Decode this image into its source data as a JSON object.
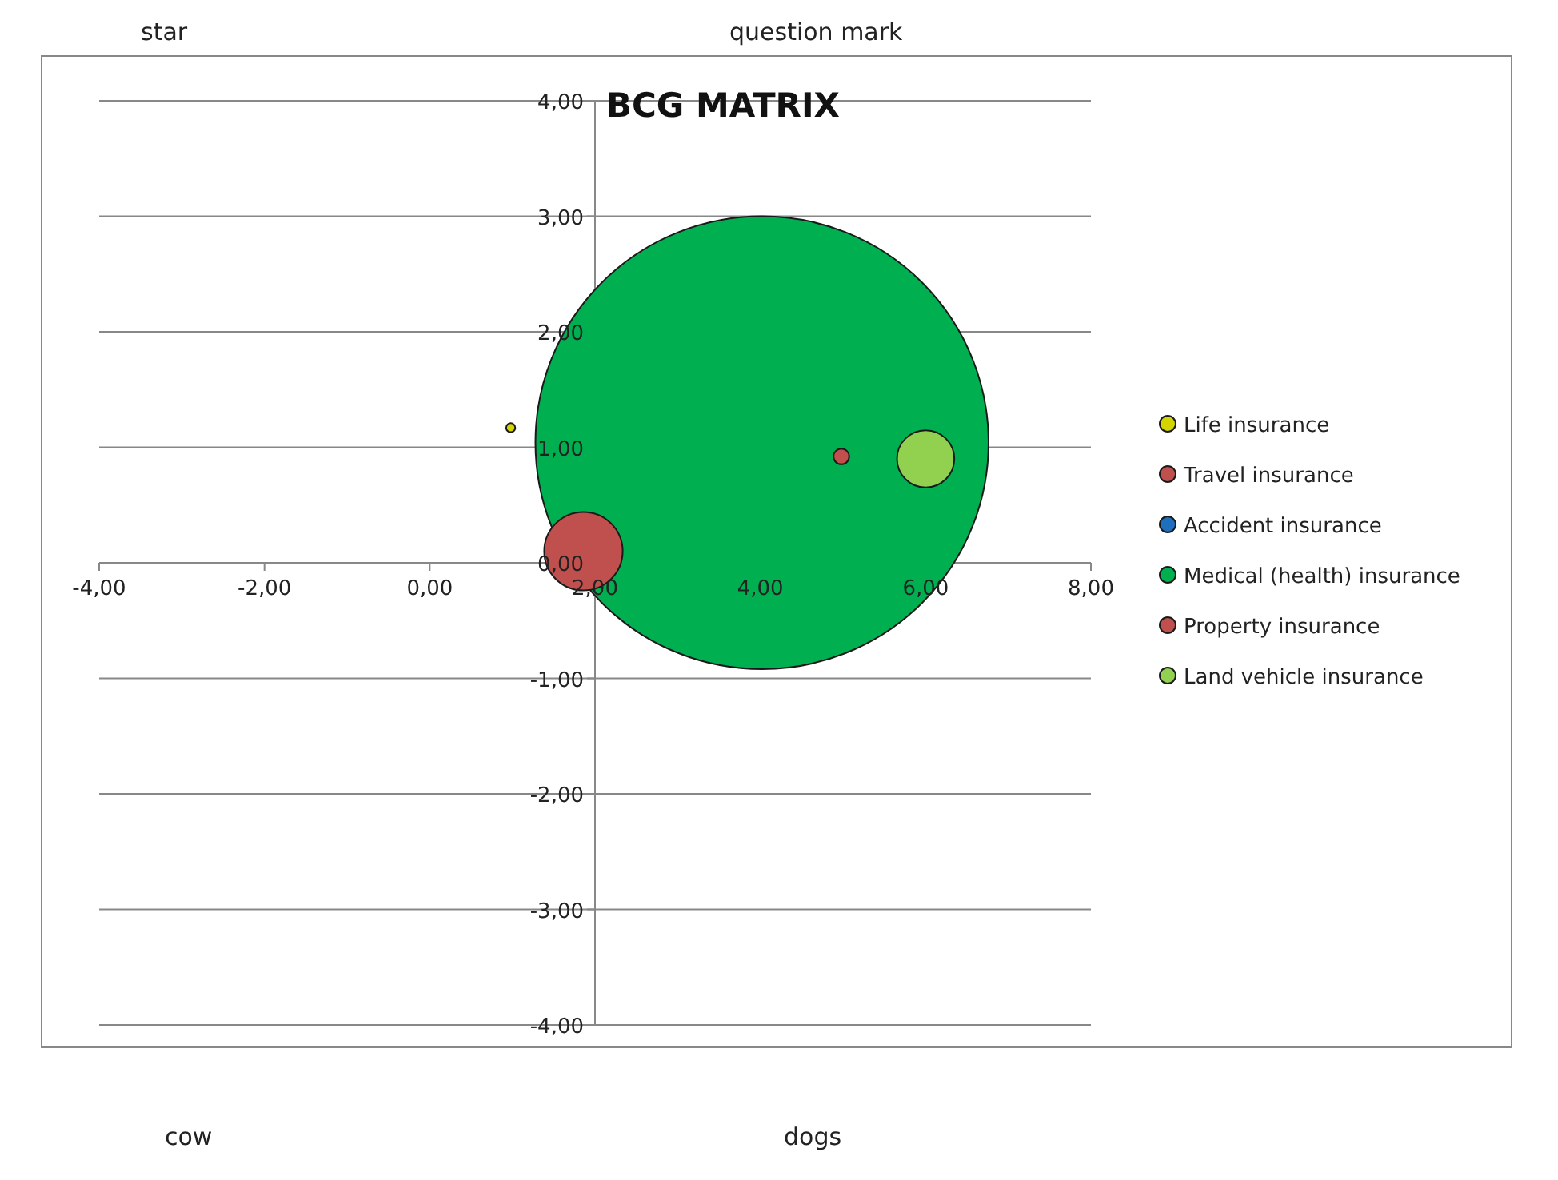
{
  "chart_data": {
    "type": "bubble",
    "title": "BCG MATRIX",
    "xlim": [
      -4,
      8
    ],
    "xticks": [
      {
        "value": -4,
        "label": "-4,00"
      },
      {
        "value": -2,
        "label": "-2,00"
      },
      {
        "value": 0,
        "label": "0,00"
      },
      {
        "value": 2,
        "label": "2,00"
      },
      {
        "value": 4,
        "label": "4,00"
      },
      {
        "value": 6,
        "label": "6,00"
      },
      {
        "value": 8,
        "label": "8,00"
      }
    ],
    "ylim": [
      -4,
      4
    ],
    "yticks": [
      {
        "value": -4,
        "label": "-4,00"
      },
      {
        "value": -3,
        "label": "-3,00"
      },
      {
        "value": -2,
        "label": "-2,00"
      },
      {
        "value": -1,
        "label": "-1,00"
      },
      {
        "value": 0,
        "label": "0,00"
      },
      {
        "value": 1,
        "label": "1,00"
      },
      {
        "value": 2,
        "label": "2,00"
      },
      {
        "value": 3,
        "label": "3,00"
      },
      {
        "value": 4,
        "label": "4,00"
      }
    ],
    "grid": "y",
    "legend": "right",
    "series": [
      {
        "name": "Life insurance",
        "color": "#d4d400",
        "x": [
          0.98
        ],
        "values": [
          1.17
        ],
        "sizes": [
          0.0004
        ]
      },
      {
        "name": "Travel insurance",
        "color": "#c0504d",
        "x": [
          4.98
        ],
        "values": [
          0.92
        ],
        "sizes": [
          0.0012
        ]
      },
      {
        "name": "Accident insurance",
        "color": "#1f6fbf",
        "x": [
          null
        ],
        "values": [
          null
        ],
        "sizes": [
          null
        ]
      },
      {
        "name": "Medical (health) insurance",
        "color": "#00b050",
        "x": [
          4.02
        ],
        "values": [
          1.04
        ],
        "sizes": [
          1
        ]
      },
      {
        "name": "Property insurance",
        "color": "#c0504d",
        "x": [
          1.86
        ],
        "values": [
          0.1
        ],
        "sizes": [
          0.03
        ]
      },
      {
        "name": "Land vehicle insurance",
        "color": "#92d050",
        "x": [
          6.0
        ],
        "values": [
          0.9
        ],
        "sizes": [
          0.016
        ]
      }
    ],
    "annotations": [
      "star",
      "question mark",
      "cow",
      "dogs"
    ]
  }
}
